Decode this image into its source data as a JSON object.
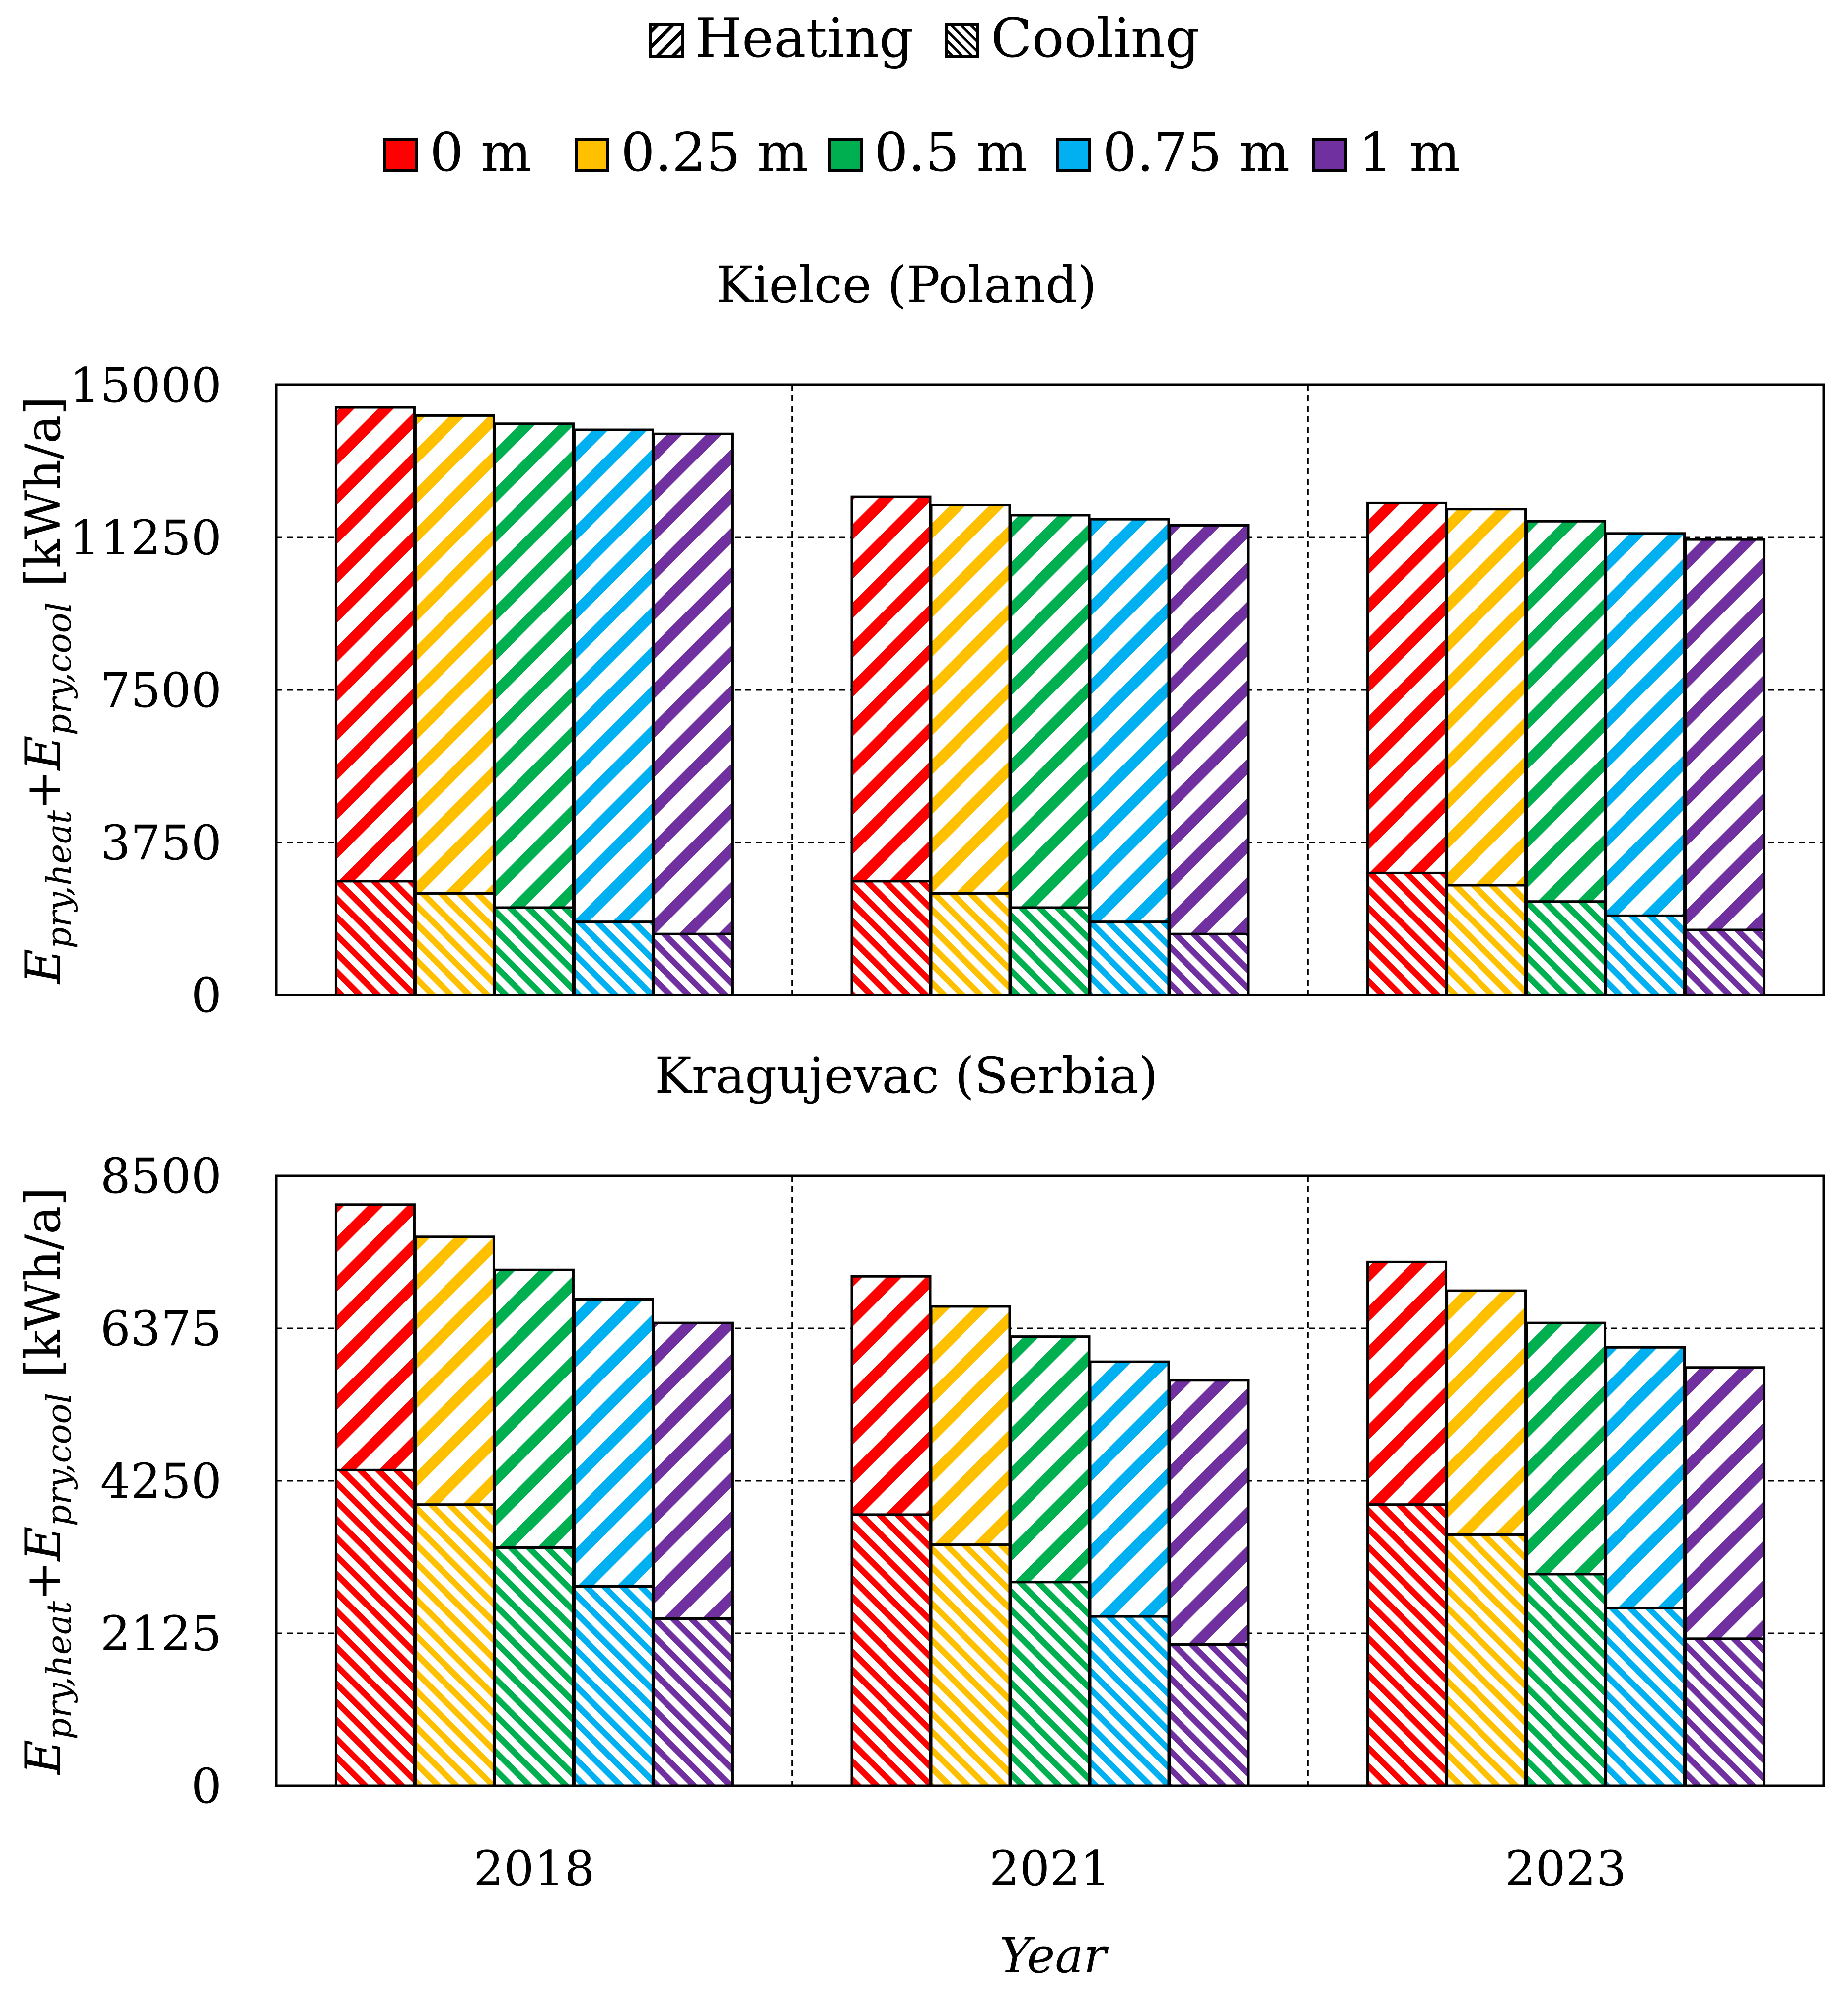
{
  "legend": {
    "components": [
      {
        "key": "heating",
        "label": "Heating"
      },
      {
        "key": "cooling",
        "label": "Cooling"
      }
    ],
    "series": [
      {
        "key": "0m",
        "label": "0 m",
        "color": "#ff0000"
      },
      {
        "key": "025m",
        "label": "0.25 m",
        "color": "#ffc000"
      },
      {
        "key": "05m",
        "label": "0.5 m",
        "color": "#00b050"
      },
      {
        "key": "075m",
        "label": "0.75 m",
        "color": "#00b0f0"
      },
      {
        "key": "1m",
        "label": "1 m",
        "color": "#7030a0"
      }
    ]
  },
  "x_axis_label": "Year",
  "chart_data": [
    {
      "type": "bar",
      "stacked": true,
      "title": "Kielce (Poland)",
      "categories": [
        "2018",
        "2021",
        "2023"
      ],
      "ylabel": {
        "E1": "E",
        "sub1": "pry,heat",
        "plus": "+",
        "E2": "E",
        "sub2": "pry,cool",
        "unit": " [kWh/a]"
      },
      "ylim": [
        0,
        15000
      ],
      "yticks": [
        "0",
        "3750",
        "7500",
        "11250",
        "15000"
      ],
      "ytick_values": [
        0,
        3750,
        7500,
        11250,
        15000
      ],
      "grid": true,
      "series": [
        {
          "name": "0 m",
          "cooling": [
            2800,
            2800,
            3000
          ],
          "heating": [
            11650,
            9450,
            9100
          ]
        },
        {
          "name": "0.25 m",
          "cooling": [
            2500,
            2500,
            2700
          ],
          "heating": [
            11750,
            9550,
            9250
          ]
        },
        {
          "name": "0.5 m",
          "cooling": [
            2150,
            2150,
            2300
          ],
          "heating": [
            11900,
            9650,
            9350
          ]
        },
        {
          "name": "0.75 m",
          "cooling": [
            1800,
            1800,
            1950
          ],
          "heating": [
            12100,
            9900,
            9400
          ]
        },
        {
          "name": "1 m",
          "cooling": [
            1500,
            1500,
            1600
          ],
          "heating": [
            12300,
            10050,
            9600
          ]
        }
      ]
    },
    {
      "type": "bar",
      "stacked": true,
      "title": "Kragujevac (Serbia)",
      "categories": [
        "2018",
        "2021",
        "2023"
      ],
      "ylabel": {
        "E1": "E",
        "sub1": "pry,heat",
        "plus": "+",
        "E2": "E",
        "sub2": "pry,cool",
        "unit": " [kWh/a]"
      },
      "ylim": [
        0,
        8500
      ],
      "yticks": [
        "0",
        "2125",
        "4250",
        "6375",
        "8500"
      ],
      "ytick_values": [
        0,
        2125,
        4250,
        6375,
        8500
      ],
      "grid": true,
      "series": [
        {
          "name": "0 m",
          "cooling": [
            4400,
            3780,
            3920
          ],
          "heating": [
            3700,
            3320,
            3380
          ]
        },
        {
          "name": "0.25 m",
          "cooling": [
            3920,
            3360,
            3500
          ],
          "heating": [
            3730,
            3320,
            3400
          ]
        },
        {
          "name": "0.5 m",
          "cooling": [
            3320,
            2840,
            2950
          ],
          "heating": [
            3870,
            3420,
            3500
          ]
        },
        {
          "name": "0.75 m",
          "cooling": [
            2780,
            2360,
            2480
          ],
          "heating": [
            4000,
            3550,
            3630
          ]
        },
        {
          "name": "1 m",
          "cooling": [
            2330,
            1970,
            2050
          ],
          "heating": [
            4120,
            3680,
            3780
          ]
        }
      ]
    }
  ]
}
